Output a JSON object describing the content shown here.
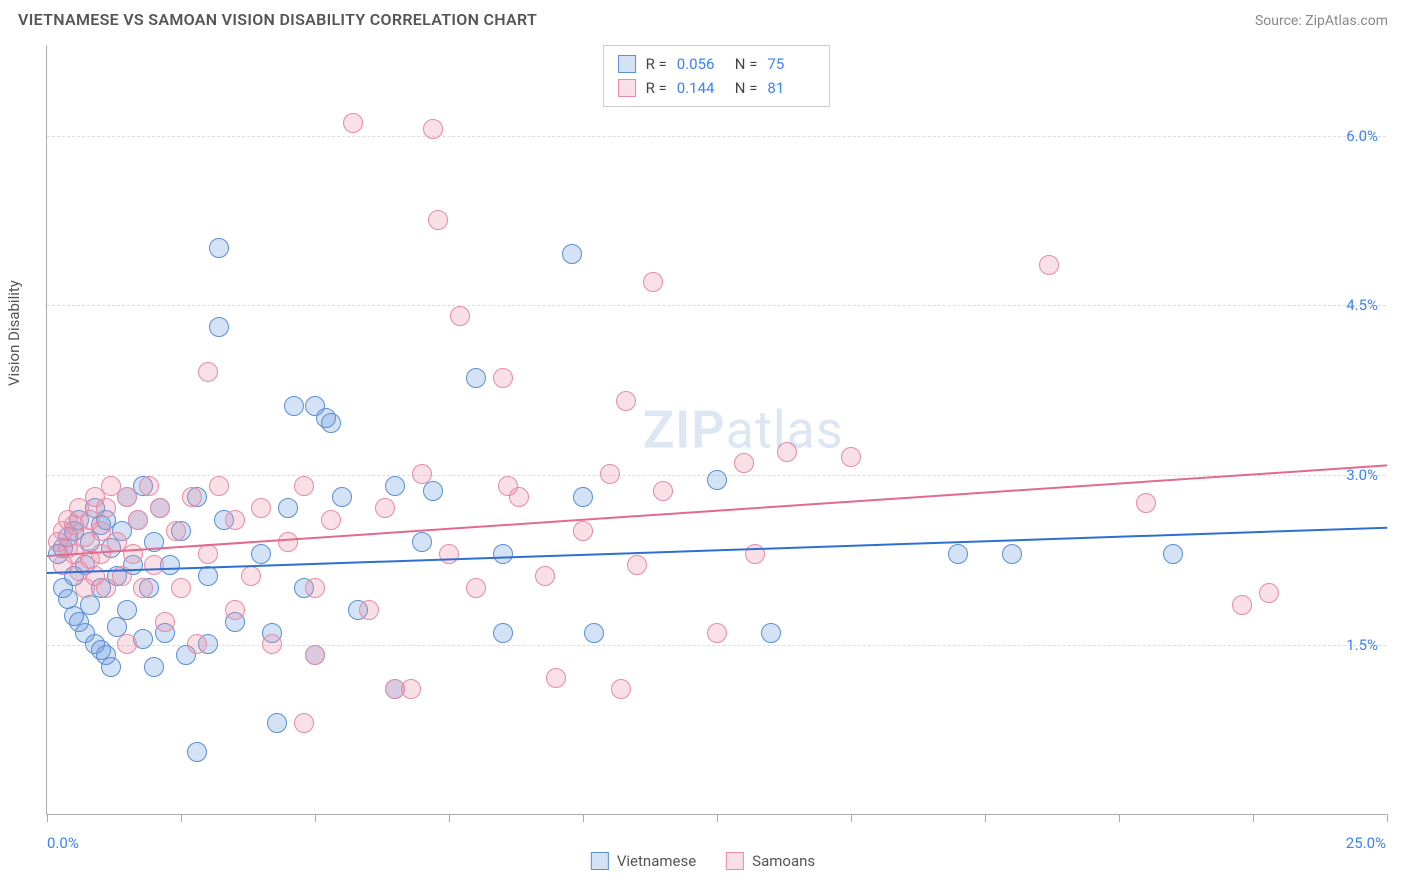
{
  "title": "VIETNAMESE VS SAMOAN VISION DISABILITY CORRELATION CHART",
  "source_label": "Source: ZipAtlas.com",
  "y_axis_label": "Vision Disability",
  "watermark": "ZIPatlas",
  "chart": {
    "type": "scatter",
    "xlim": [
      0,
      25
    ],
    "ylim": [
      0,
      6.8
    ],
    "x_min_label": "0.0%",
    "x_max_label": "25.0%",
    "y_ticks": [
      {
        "v": 1.5,
        "label": "1.5%"
      },
      {
        "v": 3.0,
        "label": "3.0%"
      },
      {
        "v": 4.5,
        "label": "4.5%"
      },
      {
        "v": 6.0,
        "label": "6.0%"
      }
    ],
    "x_tick_positions": [
      0,
      2.5,
      5,
      7.5,
      10,
      12.5,
      15,
      17.5,
      20,
      22.5,
      25
    ],
    "grid_color": "#dddddd",
    "background_color": "#ffffff",
    "axis_color": "#aaaaaa",
    "tick_label_color": "#3b82f6",
    "marker_radius": 10,
    "marker_stroke_width": 1.5,
    "marker_fill_opacity": 0.25
  },
  "series": [
    {
      "name": "Vietnamese",
      "color_stroke": "#5b8fd6",
      "color_fill": "rgba(100,150,220,0.28)",
      "R": "0.056",
      "N": "75",
      "trend": {
        "x0": 0,
        "y0": 2.15,
        "x1": 25,
        "y1": 2.55,
        "width": 2,
        "color": "#2f6fd0"
      },
      "points": [
        [
          0.2,
          2.3
        ],
        [
          0.3,
          2.35
        ],
        [
          0.3,
          2.0
        ],
        [
          0.4,
          2.45
        ],
        [
          0.4,
          1.9
        ],
        [
          0.5,
          2.1
        ],
        [
          0.5,
          2.5
        ],
        [
          0.6,
          2.6
        ],
        [
          0.6,
          1.7
        ],
        [
          0.7,
          2.2
        ],
        [
          0.7,
          1.6
        ],
        [
          0.8,
          2.4
        ],
        [
          0.8,
          1.85
        ],
        [
          0.9,
          2.7
        ],
        [
          0.9,
          1.5
        ],
        [
          1.0,
          2.0
        ],
        [
          1.0,
          2.55
        ],
        [
          1.1,
          1.4
        ],
        [
          1.1,
          2.6
        ],
        [
          1.2,
          1.3
        ],
        [
          1.2,
          2.35
        ],
        [
          1.3,
          2.1
        ],
        [
          1.3,
          1.65
        ],
        [
          1.4,
          2.5
        ],
        [
          1.5,
          2.8
        ],
        [
          1.5,
          1.8
        ],
        [
          1.6,
          2.2
        ],
        [
          1.7,
          2.6
        ],
        [
          1.8,
          1.55
        ],
        [
          1.8,
          2.9
        ],
        [
          1.9,
          2.0
        ],
        [
          2.0,
          2.4
        ],
        [
          2.0,
          1.3
        ],
        [
          2.1,
          2.7
        ],
        [
          2.2,
          1.6
        ],
        [
          2.3,
          2.2
        ],
        [
          2.5,
          2.5
        ],
        [
          2.6,
          1.4
        ],
        [
          2.8,
          2.8
        ],
        [
          2.8,
          0.55
        ],
        [
          3.0,
          2.1
        ],
        [
          3.0,
          1.5
        ],
        [
          3.2,
          4.3
        ],
        [
          3.3,
          2.6
        ],
        [
          3.5,
          1.7
        ],
        [
          3.2,
          5.0
        ],
        [
          4.0,
          2.3
        ],
        [
          4.2,
          1.6
        ],
        [
          4.3,
          0.8
        ],
        [
          4.5,
          2.7
        ],
        [
          4.6,
          3.6
        ],
        [
          4.8,
          2.0
        ],
        [
          5.0,
          1.4
        ],
        [
          5.0,
          3.6
        ],
        [
          5.2,
          3.5
        ],
        [
          5.5,
          2.8
        ],
        [
          5.8,
          1.8
        ],
        [
          5.3,
          3.45
        ],
        [
          6.5,
          2.9
        ],
        [
          6.5,
          1.1
        ],
        [
          7.0,
          2.4
        ],
        [
          7.2,
          2.85
        ],
        [
          8.0,
          3.85
        ],
        [
          8.5,
          1.6
        ],
        [
          8.5,
          2.3
        ],
        [
          9.8,
          4.95
        ],
        [
          10.0,
          2.8
        ],
        [
          10.2,
          1.6
        ],
        [
          12.5,
          2.95
        ],
        [
          13.5,
          1.6
        ],
        [
          17.0,
          2.3
        ],
        [
          18.0,
          2.3
        ],
        [
          21.0,
          2.3
        ],
        [
          0.5,
          1.75
        ],
        [
          1.0,
          1.45
        ]
      ]
    },
    {
      "name": "Samoans",
      "color_stroke": "#e88ba5",
      "color_fill": "rgba(235,140,165,0.28)",
      "R": "0.144",
      "N": "81",
      "trend": {
        "x0": 0,
        "y0": 2.3,
        "x1": 25,
        "y1": 3.1,
        "width": 2,
        "color": "#e26a8c"
      },
      "points": [
        [
          0.2,
          2.4
        ],
        [
          0.3,
          2.5
        ],
        [
          0.3,
          2.2
        ],
        [
          0.4,
          2.35
        ],
        [
          0.4,
          2.6
        ],
        [
          0.5,
          2.3
        ],
        [
          0.5,
          2.55
        ],
        [
          0.6,
          2.15
        ],
        [
          0.6,
          2.7
        ],
        [
          0.7,
          2.45
        ],
        [
          0.7,
          2.0
        ],
        [
          0.8,
          2.6
        ],
        [
          0.8,
          2.25
        ],
        [
          0.9,
          2.8
        ],
        [
          0.9,
          2.1
        ],
        [
          1.0,
          2.5
        ],
        [
          1.0,
          2.3
        ],
        [
          1.1,
          2.7
        ],
        [
          1.1,
          2.0
        ],
        [
          1.2,
          2.9
        ],
        [
          1.3,
          2.4
        ],
        [
          1.4,
          2.1
        ],
        [
          1.5,
          2.8
        ],
        [
          1.5,
          1.5
        ],
        [
          1.6,
          2.3
        ],
        [
          1.7,
          2.6
        ],
        [
          1.8,
          2.0
        ],
        [
          1.9,
          2.9
        ],
        [
          2.0,
          2.2
        ],
        [
          2.1,
          2.7
        ],
        [
          2.2,
          1.7
        ],
        [
          2.4,
          2.5
        ],
        [
          2.5,
          2.0
        ],
        [
          2.7,
          2.8
        ],
        [
          2.8,
          1.5
        ],
        [
          3.0,
          2.3
        ],
        [
          3.0,
          3.9
        ],
        [
          3.2,
          2.9
        ],
        [
          3.5,
          1.8
        ],
        [
          3.5,
          2.6
        ],
        [
          3.8,
          2.1
        ],
        [
          4.0,
          2.7
        ],
        [
          4.2,
          1.5
        ],
        [
          4.5,
          2.4
        ],
        [
          4.8,
          2.9
        ],
        [
          5.0,
          2.0
        ],
        [
          5.3,
          2.6
        ],
        [
          5.7,
          6.1
        ],
        [
          5.0,
          1.4
        ],
        [
          6.0,
          1.8
        ],
        [
          6.3,
          2.7
        ],
        [
          6.5,
          1.1
        ],
        [
          6.8,
          1.1
        ],
        [
          7.0,
          3.0
        ],
        [
          7.2,
          6.05
        ],
        [
          7.5,
          2.3
        ],
        [
          7.3,
          5.25
        ],
        [
          8.0,
          2.0
        ],
        [
          7.7,
          4.4
        ],
        [
          8.5,
          3.85
        ],
        [
          8.6,
          2.9
        ],
        [
          8.8,
          2.8
        ],
        [
          9.3,
          2.1
        ],
        [
          9.5,
          1.2
        ],
        [
          10.0,
          2.5
        ],
        [
          10.5,
          3.0
        ],
        [
          10.7,
          1.1
        ],
        [
          10.8,
          3.65
        ],
        [
          11.0,
          2.2
        ],
        [
          11.3,
          4.7
        ],
        [
          11.5,
          2.85
        ],
        [
          12.5,
          1.6
        ],
        [
          13.0,
          3.1
        ],
        [
          13.2,
          2.3
        ],
        [
          13.8,
          3.2
        ],
        [
          15.0,
          3.15
        ],
        [
          18.7,
          4.85
        ],
        [
          20.5,
          2.75
        ],
        [
          22.3,
          1.85
        ],
        [
          22.8,
          1.95
        ],
        [
          4.8,
          0.8
        ]
      ]
    }
  ],
  "stats_box": {
    "r_label": "R =",
    "n_label": "N ="
  },
  "bottom_legend": {
    "items": [
      "Vietnamese",
      "Samoans"
    ]
  }
}
